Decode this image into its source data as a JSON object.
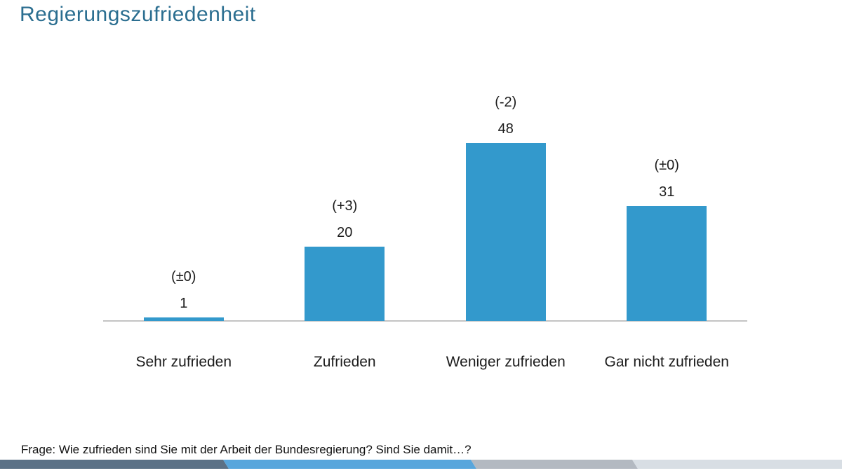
{
  "page": {
    "title": "Regierungszufriedenheit",
    "footer": "Frage: Wie zufrieden sind Sie mit der Arbeit der Bundesregierung? Sind Sie damit…?"
  },
  "colors": {
    "title": "#2b6e90",
    "bar": "#3399cc",
    "axis_line": "#c4c4c4",
    "label": "#1c1c1c",
    "stripe_dark": "#5b7186",
    "stripe_blue": "#58a6dc",
    "stripe_gray": "#b3b9c1",
    "stripe_light": "#d8dee4"
  },
  "chart_data": {
    "type": "bar",
    "title": "Regierungszufriedenheit",
    "categories": [
      "Sehr zufrieden",
      "Zufrieden",
      "Weniger zufrieden",
      "Gar nicht zufrieden"
    ],
    "values": [
      1,
      20,
      48,
      31
    ],
    "change_labels": [
      "(±0)",
      "(+3)",
      "(-2)",
      "(±0)"
    ],
    "xlabel": "",
    "ylabel": "",
    "ylim": [
      0,
      60
    ],
    "grid": false,
    "legend": false,
    "bar_color": "#3399cc",
    "value_labels_shown": true,
    "baseline_shown": true
  }
}
